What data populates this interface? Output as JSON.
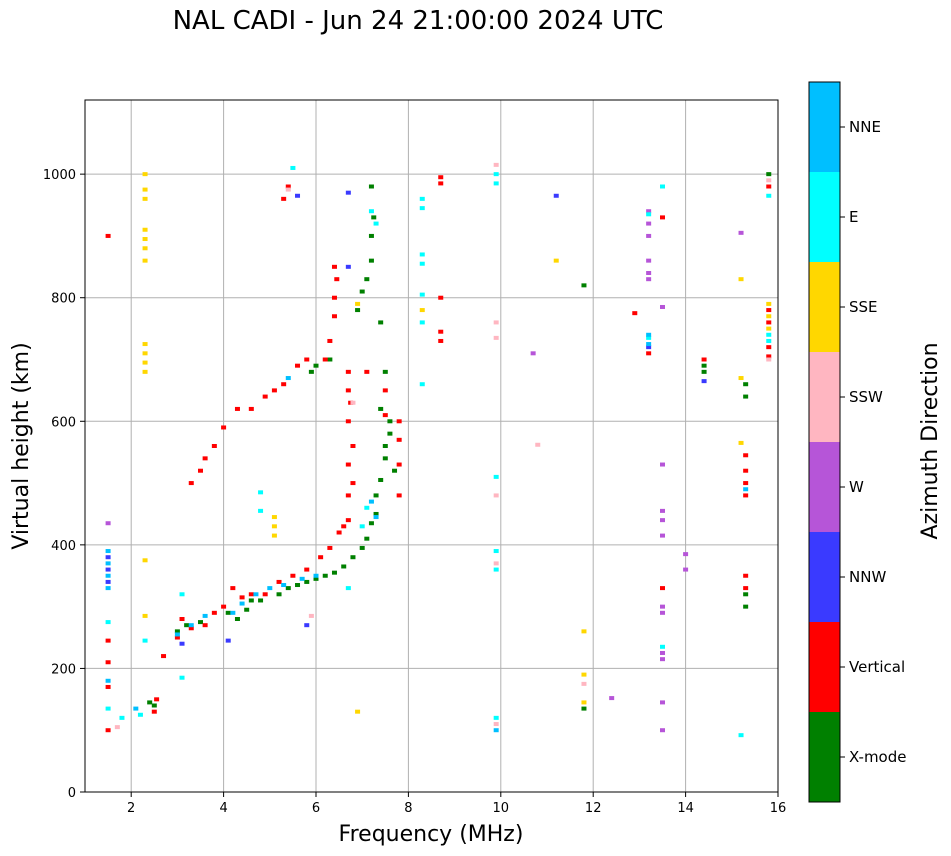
{
  "chart_data": {
    "type": "scatter",
    "title": "NAL CADI - Jun 24 21:00:00 2024 UTC",
    "xlabel": "Frequency (MHz)",
    "ylabel": "Virtual height (km)",
    "xlim": [
      1,
      16
    ],
    "ylim": [
      0,
      1120
    ],
    "xticks": [
      2,
      4,
      6,
      8,
      10,
      12,
      14,
      16
    ],
    "yticks": [
      0,
      200,
      400,
      600,
      800,
      1000
    ],
    "grid": true,
    "colorbar": {
      "label": "Azimuth Direction",
      "categories": [
        {
          "name": "X-mode",
          "color": "#008000"
        },
        {
          "name": "Vertical",
          "color": "#ff0000"
        },
        {
          "name": "NNW",
          "color": "#3a3aff"
        },
        {
          "name": "W",
          "color": "#b655d8"
        },
        {
          "name": "SSW",
          "color": "#ffb6c1"
        },
        {
          "name": "SSE",
          "color": "#ffd700"
        },
        {
          "name": "E",
          "color": "#00ffff"
        },
        {
          "name": "NNE",
          "color": "#00bfff"
        }
      ]
    },
    "series": [
      {
        "name": "X-mode",
        "points": [
          [
            2.4,
            145
          ],
          [
            2.5,
            140
          ],
          [
            3.0,
            260
          ],
          [
            3.2,
            270
          ],
          [
            3.5,
            275
          ],
          [
            4.1,
            290
          ],
          [
            4.3,
            280
          ],
          [
            4.5,
            295
          ],
          [
            4.6,
            310
          ],
          [
            4.8,
            310
          ],
          [
            5.2,
            320
          ],
          [
            5.4,
            330
          ],
          [
            5.6,
            335
          ],
          [
            5.8,
            340
          ],
          [
            6.0,
            345
          ],
          [
            6.2,
            350
          ],
          [
            6.4,
            355
          ],
          [
            6.6,
            365
          ],
          [
            6.8,
            380
          ],
          [
            7.0,
            395
          ],
          [
            7.1,
            410
          ],
          [
            7.2,
            435
          ],
          [
            7.3,
            450
          ],
          [
            7.3,
            480
          ],
          [
            7.4,
            505
          ],
          [
            7.5,
            540
          ],
          [
            7.5,
            560
          ],
          [
            7.6,
            580
          ],
          [
            7.6,
            600
          ],
          [
            7.7,
            520
          ],
          [
            7.4,
            620
          ],
          [
            7.5,
            680
          ],
          [
            7.4,
            760
          ],
          [
            6.9,
            780
          ],
          [
            7.0,
            810
          ],
          [
            7.1,
            830
          ],
          [
            7.2,
            860
          ],
          [
            7.2,
            900
          ],
          [
            7.25,
            930
          ],
          [
            7.2,
            980
          ],
          [
            5.9,
            680
          ],
          [
            6.0,
            690
          ],
          [
            6.3,
            700
          ],
          [
            11.8,
            135
          ],
          [
            11.8,
            820
          ],
          [
            14.4,
            690
          ],
          [
            14.4,
            680
          ],
          [
            15.3,
            300
          ],
          [
            15.3,
            320
          ],
          [
            15.3,
            640
          ],
          [
            15.3,
            660
          ],
          [
            15.8,
            1000
          ]
        ]
      },
      {
        "name": "Vertical",
        "points": [
          [
            1.5,
            100
          ],
          [
            1.5,
            170
          ],
          [
            1.5,
            210
          ],
          [
            1.5,
            245
          ],
          [
            1.5,
            900
          ],
          [
            2.5,
            130
          ],
          [
            2.55,
            150
          ],
          [
            2.7,
            220
          ],
          [
            3.0,
            250
          ],
          [
            3.1,
            280
          ],
          [
            3.3,
            265
          ],
          [
            3.6,
            270
          ],
          [
            3.8,
            290
          ],
          [
            4.0,
            300
          ],
          [
            4.2,
            330
          ],
          [
            4.4,
            315
          ],
          [
            4.6,
            320
          ],
          [
            4.9,
            320
          ],
          [
            5.2,
            340
          ],
          [
            5.5,
            350
          ],
          [
            5.8,
            360
          ],
          [
            6.1,
            380
          ],
          [
            6.3,
            395
          ],
          [
            6.5,
            420
          ],
          [
            6.6,
            430
          ],
          [
            6.7,
            440
          ],
          [
            6.7,
            480
          ],
          [
            6.8,
            500
          ],
          [
            6.7,
            530
          ],
          [
            6.8,
            560
          ],
          [
            6.7,
            600
          ],
          [
            6.75,
            630
          ],
          [
            6.7,
            650
          ],
          [
            6.7,
            680
          ],
          [
            6.2,
            700
          ],
          [
            6.3,
            730
          ],
          [
            6.4,
            770
          ],
          [
            6.4,
            800
          ],
          [
            6.45,
            830
          ],
          [
            6.4,
            850
          ],
          [
            7.1,
            680
          ],
          [
            7.5,
            610
          ],
          [
            7.5,
            650
          ],
          [
            7.8,
            480
          ],
          [
            7.8,
            530
          ],
          [
            7.8,
            570
          ],
          [
            7.8,
            600
          ],
          [
            3.3,
            500
          ],
          [
            3.5,
            520
          ],
          [
            3.6,
            540
          ],
          [
            3.8,
            560
          ],
          [
            4.0,
            590
          ],
          [
            4.3,
            620
          ],
          [
            4.6,
            620
          ],
          [
            4.9,
            640
          ],
          [
            5.1,
            650
          ],
          [
            5.3,
            660
          ],
          [
            5.6,
            690
          ],
          [
            5.8,
            700
          ],
          [
            5.3,
            960
          ],
          [
            5.4,
            980
          ],
          [
            8.7,
            730
          ],
          [
            8.7,
            745
          ],
          [
            8.7,
            800
          ],
          [
            8.7,
            985
          ],
          [
            8.7,
            995
          ],
          [
            12.9,
            775
          ],
          [
            13.2,
            710
          ],
          [
            13.5,
            930
          ],
          [
            13.5,
            330
          ],
          [
            14.4,
            700
          ],
          [
            15.3,
            350
          ],
          [
            15.3,
            330
          ],
          [
            15.3,
            480
          ],
          [
            15.3,
            500
          ],
          [
            15.3,
            520
          ],
          [
            15.3,
            545
          ],
          [
            15.8,
            980
          ],
          [
            15.8,
            780
          ],
          [
            15.8,
            760
          ],
          [
            15.8,
            720
          ],
          [
            15.8,
            705
          ]
        ]
      },
      {
        "name": "NNW",
        "points": [
          [
            1.5,
            380
          ],
          [
            1.5,
            360
          ],
          [
            1.5,
            340
          ],
          [
            3.1,
            240
          ],
          [
            4.1,
            245
          ],
          [
            5.8,
            270
          ],
          [
            5.6,
            965
          ],
          [
            6.7,
            970
          ],
          [
            6.7,
            850
          ],
          [
            11.2,
            965
          ],
          [
            13.2,
            720
          ],
          [
            14.4,
            665
          ]
        ]
      },
      {
        "name": "W",
        "points": [
          [
            1.5,
            435
          ],
          [
            13.2,
            940
          ],
          [
            13.2,
            920
          ],
          [
            13.2,
            900
          ],
          [
            13.2,
            860
          ],
          [
            13.2,
            840
          ],
          [
            13.2,
            830
          ],
          [
            13.5,
            785
          ],
          [
            13.5,
            530
          ],
          [
            13.5,
            455
          ],
          [
            13.5,
            440
          ],
          [
            13.5,
            415
          ],
          [
            13.5,
            300
          ],
          [
            13.5,
            290
          ],
          [
            13.5,
            225
          ],
          [
            13.5,
            215
          ],
          [
            13.5,
            145
          ],
          [
            13.5,
            100
          ],
          [
            14.0,
            385
          ],
          [
            14.0,
            360
          ],
          [
            12.4,
            152
          ],
          [
            10.7,
            710
          ],
          [
            15.2,
            905
          ]
        ]
      },
      {
        "name": "SSW",
        "points": [
          [
            5.4,
            975
          ],
          [
            5.9,
            285
          ],
          [
            6.8,
            630
          ],
          [
            9.9,
            1015
          ],
          [
            9.9,
            760
          ],
          [
            9.9,
            735
          ],
          [
            9.9,
            480
          ],
          [
            9.9,
            370
          ],
          [
            9.9,
            110
          ],
          [
            10.8,
            562
          ],
          [
            11.8,
            175
          ],
          [
            15.8,
            990
          ],
          [
            15.8,
            700
          ],
          [
            1.7,
            105
          ]
        ]
      },
      {
        "name": "SSE",
        "points": [
          [
            2.3,
            1000
          ],
          [
            2.3,
            975
          ],
          [
            2.3,
            960
          ],
          [
            2.3,
            910
          ],
          [
            2.3,
            895
          ],
          [
            2.3,
            880
          ],
          [
            2.3,
            860
          ],
          [
            2.3,
            725
          ],
          [
            2.3,
            710
          ],
          [
            2.3,
            695
          ],
          [
            2.3,
            680
          ],
          [
            2.3,
            375
          ],
          [
            2.3,
            285
          ],
          [
            5.1,
            445
          ],
          [
            5.1,
            430
          ],
          [
            5.1,
            415
          ],
          [
            6.9,
            790
          ],
          [
            6.9,
            130
          ],
          [
            8.3,
            780
          ],
          [
            11.2,
            860
          ],
          [
            11.8,
            260
          ],
          [
            11.8,
            190
          ],
          [
            11.8,
            145
          ],
          [
            15.2,
            830
          ],
          [
            15.2,
            670
          ],
          [
            15.2,
            565
          ],
          [
            15.8,
            790
          ],
          [
            15.8,
            770
          ],
          [
            15.8,
            750
          ]
        ]
      },
      {
        "name": "E",
        "points": [
          [
            1.5,
            275
          ],
          [
            1.5,
            135
          ],
          [
            1.8,
            120
          ],
          [
            2.2,
            125
          ],
          [
            2.3,
            245
          ],
          [
            3.1,
            185
          ],
          [
            3.1,
            320
          ],
          [
            4.8,
            485
          ],
          [
            4.8,
            455
          ],
          [
            5.5,
            1010
          ],
          [
            6.7,
            330
          ],
          [
            7.2,
            940
          ],
          [
            7.3,
            920
          ],
          [
            7.0,
            430
          ],
          [
            7.1,
            460
          ],
          [
            8.3,
            960
          ],
          [
            8.3,
            945
          ],
          [
            8.3,
            870
          ],
          [
            8.3,
            855
          ],
          [
            8.3,
            805
          ],
          [
            8.3,
            760
          ],
          [
            8.3,
            660
          ],
          [
            9.9,
            1000
          ],
          [
            9.9,
            985
          ],
          [
            9.9,
            510
          ],
          [
            9.9,
            390
          ],
          [
            9.9,
            360
          ],
          [
            9.9,
            120
          ],
          [
            13.2,
            935
          ],
          [
            13.2,
            735
          ],
          [
            13.5,
            980
          ],
          [
            13.5,
            235
          ],
          [
            15.2,
            92
          ],
          [
            15.8,
            965
          ],
          [
            15.8,
            740
          ],
          [
            15.8,
            730
          ]
        ]
      },
      {
        "name": "NNE",
        "points": [
          [
            1.5,
            390
          ],
          [
            1.5,
            370
          ],
          [
            1.5,
            350
          ],
          [
            1.5,
            330
          ],
          [
            1.5,
            180
          ],
          [
            2.1,
            135
          ],
          [
            3.0,
            255
          ],
          [
            3.3,
            270
          ],
          [
            3.6,
            285
          ],
          [
            4.2,
            290
          ],
          [
            4.4,
            305
          ],
          [
            4.7,
            320
          ],
          [
            5.0,
            330
          ],
          [
            5.3,
            335
          ],
          [
            5.7,
            345
          ],
          [
            6.0,
            350
          ],
          [
            5.4,
            670
          ],
          [
            7.2,
            470
          ],
          [
            7.3,
            445
          ],
          [
            9.9,
            100
          ],
          [
            13.2,
            725
          ],
          [
            13.2,
            740
          ],
          [
            15.3,
            490
          ]
        ]
      }
    ]
  }
}
